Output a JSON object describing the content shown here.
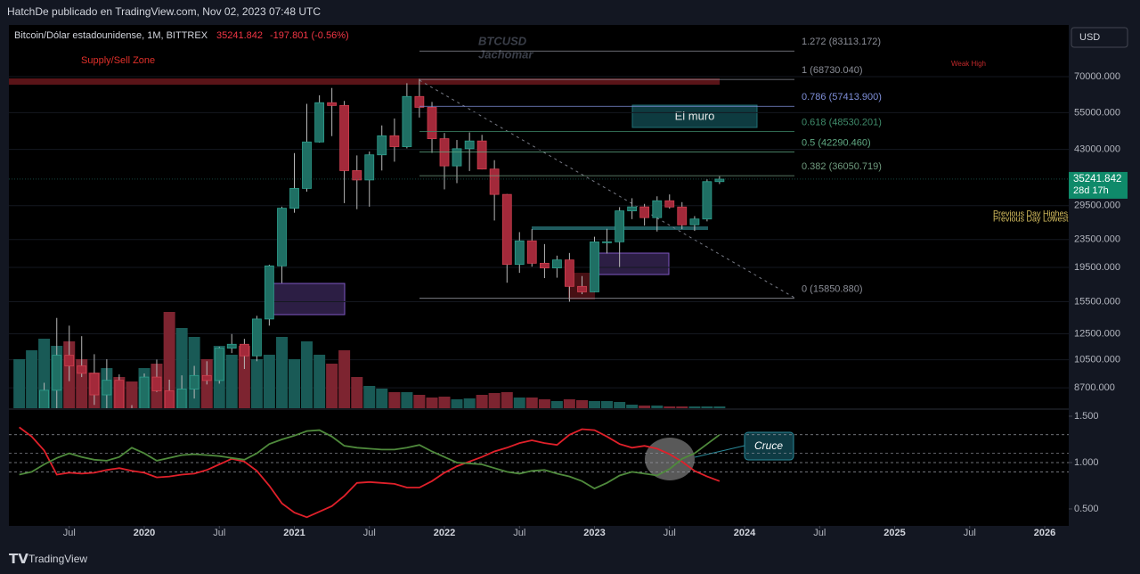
{
  "page": {
    "header": "HatchDe publicado en TradingView.com, Nov 02, 2023 07:48 UTC",
    "footer": "TradingView",
    "currency": "USD",
    "countdown": "28d 17h"
  },
  "chart_data": {
    "type": "candlestick",
    "title": "Bitcoin/Dólar estadounidense, 1M, BITTREX",
    "change": "-197.801 (-0.56%)",
    "watermark": [
      "BTCUSD",
      "Jachomar"
    ],
    "annotations": {
      "supply": "Supply/Sell Zone",
      "weak_high": "Weak High",
      "wall": "El muro",
      "cross": "Cruce",
      "prev_high": "Previous Day Highes",
      "prev_low": "Previous Day Lowest"
    },
    "log_scale": true,
    "up_color": "#1f6f64",
    "down_color": "#a3293a",
    "x": [
      2019.167,
      2019.25,
      2019.333,
      2019.417,
      2019.5,
      2019.583,
      2019.667,
      2019.75,
      2019.833,
      2019.917,
      2020.0,
      2020.083,
      2020.167,
      2020.25,
      2020.333,
      2020.417,
      2020.5,
      2020.583,
      2020.667,
      2020.75,
      2020.833,
      2020.917,
      2021.0,
      2021.083,
      2021.167,
      2021.25,
      2021.333,
      2021.417,
      2021.5,
      2021.583,
      2021.667,
      2021.75,
      2021.833,
      2021.917,
      2022.0,
      2022.083,
      2022.167,
      2022.25,
      2022.333,
      2022.417,
      2022.5,
      2022.583,
      2022.667,
      2022.75,
      2022.833,
      2022.917,
      2023.0,
      2023.083,
      2023.167,
      2023.25,
      2023.333,
      2023.417,
      2023.5,
      2023.583,
      2023.667,
      2023.75,
      2023.833
    ],
    "open": [
      3820,
      4105,
      5320,
      8560,
      10820,
      10080,
      9590,
      8300,
      9150,
      7560,
      7190,
      9350,
      8530,
      6410,
      8630,
      9450,
      9140,
      11350,
      11650,
      10780,
      13800,
      19700,
      28990,
      33100,
      45200,
      58800,
      57700,
      37300,
      35040,
      41460,
      47100,
      43800,
      61300,
      57000,
      46200,
      38500,
      43200,
      45500,
      37700,
      31800,
      19900,
      23300,
      20050,
      19430,
      20500,
      17170,
      16550,
      23130,
      23150,
      28480,
      29250,
      27220,
      30480,
      29230,
      25940,
      26970,
      34650
    ],
    "high": [
      4100,
      5600,
      9000,
      13900,
      13200,
      12300,
      10900,
      10540,
      9520,
      7750,
      9580,
      10520,
      9190,
      9460,
      10080,
      10400,
      11450,
      12480,
      12080,
      14100,
      19860,
      29300,
      41950,
      58350,
      61800,
      64900,
      59500,
      41300,
      42400,
      50500,
      52900,
      67000,
      69000,
      59100,
      48000,
      45800,
      48200,
      47400,
      40000,
      31900,
      24700,
      25200,
      22800,
      21100,
      21480,
      18400,
      23950,
      25250,
      29200,
      31000,
      29850,
      31400,
      31800,
      30200,
      27500,
      35200,
      35900
    ],
    "low": [
      3690,
      4080,
      5320,
      7500,
      9100,
      9350,
      7760,
      7300,
      6530,
      6430,
      6870,
      8460,
      3800,
      6160,
      8100,
      8900,
      8950,
      10980,
      9870,
      10400,
      13200,
      17570,
      28130,
      32400,
      45000,
      47000,
      30000,
      28800,
      29300,
      37330,
      39600,
      43300,
      53250,
      42000,
      32900,
      34300,
      37200,
      37600,
      26700,
      17600,
      18800,
      19600,
      18150,
      18200,
      15500,
      16300,
      16500,
      21400,
      19550,
      26950,
      25800,
      24800,
      28900,
      25200,
      24900,
      26550,
      34100
    ],
    "close": [
      4105,
      5320,
      8560,
      10820,
      10080,
      9590,
      8300,
      9150,
      7560,
      7190,
      9350,
      8530,
      6410,
      8630,
      9450,
      9140,
      11350,
      11650,
      10780,
      13800,
      19700,
      28990,
      33100,
      45200,
      58800,
      57700,
      37300,
      35040,
      41460,
      47100,
      43800,
      61300,
      57000,
      46200,
      38500,
      43200,
      45500,
      37700,
      31800,
      19900,
      23300,
      20050,
      19430,
      20500,
      17170,
      16550,
      23130,
      23150,
      28480,
      29250,
      27220,
      30480,
      29230,
      25940,
      26970,
      34650,
      35241.842
    ],
    "volume": [
      55,
      65,
      78,
      70,
      75,
      55,
      40,
      45,
      35,
      30,
      45,
      50,
      108,
      90,
      80,
      55,
      70,
      60,
      70,
      55,
      60,
      80,
      55,
      75,
      60,
      50,
      65,
      35,
      25,
      22,
      18,
      18,
      15,
      12,
      13,
      10,
      11,
      15,
      17,
      18,
      12,
      12,
      10,
      8,
      10,
      9,
      8,
      8,
      7,
      4,
      3,
      3,
      2,
      2,
      2,
      2,
      2
    ],
    "xlim": [
      2019.098,
      2026.16
    ],
    "xticks": [
      {
        "value": 2019.5,
        "label": "Jul"
      },
      2020,
      {
        "value": 2020.5,
        "label": "Jul"
      },
      2021,
      {
        "value": 2021.5,
        "label": "Jul"
      },
      2022,
      {
        "value": 2022.5,
        "label": "Jul"
      },
      2023,
      {
        "value": 2023.5,
        "label": "Jul"
      },
      2024,
      {
        "value": 2024.5,
        "label": "Jul"
      },
      2025,
      {
        "value": 2025.5,
        "label": "Jul"
      },
      2026
    ],
    "ylim": [
      7590,
      99000
    ],
    "yticks": [
      {
        "value": 70000,
        "label": "70000.000"
      },
      {
        "value": 55000,
        "label": "55000.000"
      },
      {
        "value": 43000,
        "label": "43000.000"
      },
      {
        "value": 29500,
        "label": "29500.000"
      },
      {
        "value": 23500,
        "label": "23500.000"
      },
      {
        "value": 19500,
        "label": "19500.000"
      },
      {
        "value": 15500,
        "label": "15500.000"
      },
      {
        "value": 12500,
        "label": "12500.000"
      },
      {
        "value": 10500,
        "label": "10500.000"
      },
      {
        "value": 8700,
        "label": "8700.000"
      }
    ],
    "fib": {
      "levels": [
        1.272,
        1,
        0.786,
        0.618,
        0.5,
        0.382,
        0
      ],
      "prices": [
        83113.172,
        68730.04,
        57413.9,
        48530.201,
        42290.46,
        36050.719,
        15850.88
      ],
      "value_labels": [
        "1.272 (83113.172)",
        "1 (68730.040)",
        "0.786 (57413.900)",
        "0.618 (48530.201)",
        "0.5 (42290.460)",
        "0.382 (36050.719)",
        "0 (15850.880)"
      ],
      "colors": [
        "#8a8d96",
        "#8a8d96",
        "#7f8fd9",
        "#3f8a6a",
        "#5fa882",
        "#6f9a7e",
        "#8a8d96"
      ]
    },
    "oscillator": {
      "ylim": [
        0.317,
        1.567
      ],
      "yticks": [
        {
          "value": 1.5,
          "label": "1.500"
        },
        {
          "value": 1,
          "label": "1.000"
        },
        {
          "value": 0.5,
          "label": "0.500"
        }
      ],
      "reference_levels": [
        1.3,
        1.1,
        1.0,
        0.9
      ],
      "series": [
        {
          "color": "#e0202a",
          "values": [
            1.38,
            1.28,
            1.13,
            0.87,
            0.89,
            0.88,
            0.89,
            0.92,
            0.94,
            0.91,
            0.89,
            0.84,
            0.85,
            0.87,
            0.88,
            0.92,
            0.98,
            1.04,
            1.01,
            0.91,
            0.75,
            0.56,
            0.46,
            0.41,
            0.47,
            0.53,
            0.64,
            0.78,
            0.79,
            0.78,
            0.77,
            0.73,
            0.73,
            0.8,
            0.89,
            0.96,
            1.01,
            1.06,
            1.12,
            1.16,
            1.21,
            1.24,
            1.21,
            1.19,
            1.3,
            1.36,
            1.35,
            1.28,
            1.2,
            1.16,
            1.18,
            1.15,
            1.09,
            1.01,
            0.91,
            0.85,
            0.8
          ]
        },
        {
          "color": "#4f8a3c",
          "values": [
            0.87,
            0.9,
            0.98,
            1.05,
            1.1,
            1.06,
            1.03,
            1.02,
            1.06,
            1.16,
            1.1,
            1.02,
            1.05,
            1.08,
            1.09,
            1.08,
            1.07,
            1.05,
            1.03,
            1.1,
            1.2,
            1.25,
            1.29,
            1.34,
            1.35,
            1.28,
            1.18,
            1.16,
            1.15,
            1.14,
            1.14,
            1.16,
            1.19,
            1.12,
            1.06,
            1.0,
            0.99,
            0.98,
            0.94,
            0.9,
            0.88,
            0.91,
            0.92,
            0.88,
            0.85,
            0.8,
            0.72,
            0.78,
            0.86,
            0.9,
            0.88,
            0.86,
            0.93,
            1.04,
            1.1,
            1.2,
            1.3
          ]
        }
      ]
    }
  }
}
